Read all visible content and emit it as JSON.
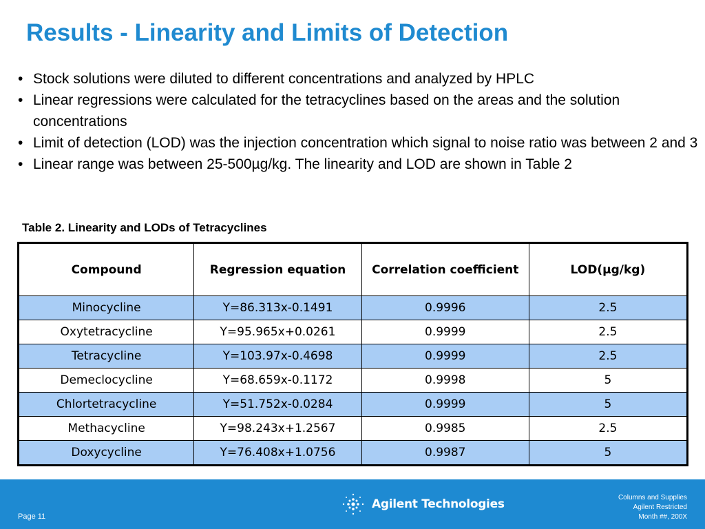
{
  "title": "Results - Linearity and Limits of Detection",
  "bullets": [
    "Stock solutions were diluted to different concentrations and analyzed by HPLC",
    "Linear regressions were calculated for the tetracyclines based on the areas and the solution concentrations",
    "Limit of detection (LOD) was the injection concentration which signal to noise ratio was between 2 and 3",
    "Linear range was between 25-500µg/kg. The linearity and LOD are shown in Table 2"
  ],
  "table": {
    "caption": "Table 2. Linearity and LODs of Tetracyclines",
    "headers": [
      "Compound",
      "Regression equation",
      "Correlation coefficient",
      "LOD(µg/kg)"
    ],
    "rows": [
      [
        "Minocycline",
        "Y=86.313x-0.1491",
        "0.9996",
        "2.5"
      ],
      [
        "Oxytetracycline",
        "Y=95.965x+0.0261",
        "0.9999",
        "2.5"
      ],
      [
        "Tetracycline",
        "Y=103.97x-0.4698",
        "0.9999",
        "2.5"
      ],
      [
        "Demeclocycline",
        "Y=68.659x-0.1172",
        "0.9998",
        "5"
      ],
      [
        "Chlortetracycline",
        "Y=51.752x-0.0284",
        "0.9999",
        "5"
      ],
      [
        "Methacycline",
        "Y=98.243x+1.2567",
        "0.9985",
        "2.5"
      ],
      [
        "Doxycycline",
        "Y=76.408x+1.0756",
        "0.9987",
        "5"
      ]
    ]
  },
  "footer": {
    "page": "Page 11",
    "logo_text": "Agilent Technologies",
    "logo_icon": "agilent-spark-icon",
    "notes": [
      "Columns and Supplies",
      "Agilent Restricted",
      "Month ##, 200X"
    ]
  },
  "colors": {
    "title": "#1f8ad0",
    "row_shade": "#a9cdf5",
    "footer_bg": "#1e8ad2"
  }
}
